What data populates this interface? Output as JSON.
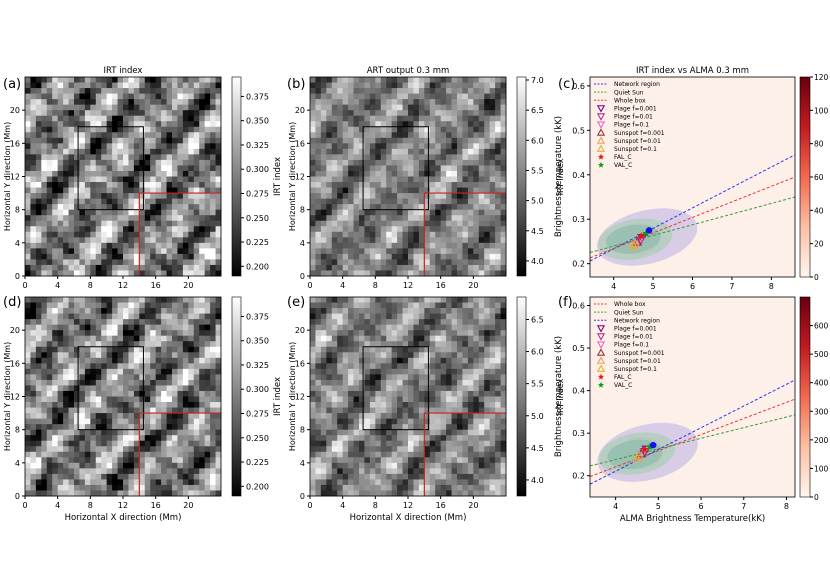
{
  "panel_labels": [
    "(a)",
    "(b)",
    "(c)",
    "(d)",
    "(e)",
    "(f)"
  ],
  "map_panels": [
    {
      "id": "a",
      "title": "IRT index",
      "xlabel": "",
      "ylabel": "Horizontal Y direction (Mm)",
      "xticks": [
        "0",
        "4",
        "8",
        "12",
        "16",
        "20"
      ],
      "yticks": [
        "0",
        "4",
        "8",
        "12",
        "16",
        "20"
      ],
      "cbar_label": "IRT index",
      "cbar_ticks": [
        "0.200",
        "0.225",
        "0.250",
        "0.275",
        "0.300",
        "0.325",
        "0.350",
        "0.375"
      ],
      "cbar_range": [
        0.19,
        0.395
      ],
      "contrast": 1.7
    },
    {
      "id": "b",
      "title": "ART output 0.3 mm",
      "xlabel": "",
      "ylabel": "Horizontal Y direction (Mm)",
      "xticks": [
        "0",
        "4",
        "8",
        "12",
        "16",
        "20"
      ],
      "yticks": [
        "0",
        "4",
        "8",
        "12",
        "16",
        "20"
      ],
      "cbar_label": "Brightness temperature (kK)",
      "cbar_ticks": [
        "4.0",
        "4.5",
        "5.0",
        "5.5",
        "6.0",
        "6.5",
        "7.0"
      ],
      "cbar_range": [
        3.75,
        7.05
      ],
      "contrast": 1.2
    },
    {
      "id": "d",
      "title": "",
      "xlabel": "Horizontal X direction (Mm)",
      "ylabel": "Horizontal Y direction (Mm)",
      "xticks": [
        "0",
        "4",
        "8",
        "12",
        "16",
        "20"
      ],
      "yticks": [
        "0",
        "4",
        "8",
        "12",
        "16",
        "20"
      ],
      "cbar_label": "IRT index",
      "cbar_ticks": [
        "0.200",
        "0.225",
        "0.250",
        "0.275",
        "0.300",
        "0.325",
        "0.350",
        "0.375"
      ],
      "cbar_range": [
        0.19,
        0.395
      ],
      "contrast": 1.7
    },
    {
      "id": "e",
      "title": "",
      "xlabel": "Horizontal X direction (Mm)",
      "ylabel": "Horizontal Y direction (Mm)",
      "xticks": [
        "0",
        "4",
        "8",
        "12",
        "16",
        "20"
      ],
      "yticks": [
        "0",
        "4",
        "8",
        "12",
        "16",
        "20"
      ],
      "cbar_label": "Brightness temperature (kK)",
      "cbar_ticks": [
        "4.0",
        "4.5",
        "5.0",
        "5.5",
        "6.0",
        "6.5"
      ],
      "cbar_range": [
        3.75,
        6.85
      ],
      "contrast": 1.2
    }
  ],
  "chart_data": [
    {
      "type": "heatmap",
      "panel": "a",
      "title": "IRT index",
      "ylabel": "Horizontal Y direction (Mm)",
      "xlim": [
        0,
        24
      ],
      "ylim": [
        0,
        24
      ],
      "regions": [
        {
          "kind": "network-box",
          "color": "#000000",
          "x": [
            6.5,
            14.5
          ],
          "y": [
            8,
            18
          ]
        },
        {
          "kind": "sunspot-box",
          "color": "#cc2222",
          "x": [
            14,
            24
          ],
          "y": [
            0,
            10
          ]
        }
      ],
      "colorbar": {
        "label": "IRT index",
        "min": 0.19,
        "max": 0.395
      }
    },
    {
      "type": "heatmap",
      "panel": "b",
      "title": "ART output 0.3 mm",
      "ylabel": "Horizontal Y direction (Mm)",
      "xlim": [
        0,
        24
      ],
      "ylim": [
        0,
        24
      ],
      "regions": [
        {
          "kind": "network-box",
          "color": "#000000",
          "x": [
            6.5,
            14.5
          ],
          "y": [
            8,
            18
          ]
        },
        {
          "kind": "sunspot-box",
          "color": "#cc2222",
          "x": [
            14,
            24
          ],
          "y": [
            0,
            10
          ]
        }
      ],
      "colorbar": {
        "label": "Brightness temperature (kK)",
        "min": 3.75,
        "max": 7.05
      }
    },
    {
      "type": "scatter",
      "panel": "c",
      "title": "IRT index vs ALMA 0.3 mm",
      "xlabel": "",
      "ylabel": "IRT index",
      "xlim": [
        3.4,
        8.6
      ],
      "ylim": [
        0.17,
        0.62
      ],
      "xticks": [
        "4",
        "5",
        "6",
        "7",
        "8"
      ],
      "yticks": [
        "0.2",
        "0.3",
        "0.4",
        "0.5",
        "0.6"
      ],
      "colorbar": {
        "min": 0,
        "max": 120,
        "ticks": [
          "0",
          "20",
          "40",
          "60",
          "80",
          "100",
          "120"
        ]
      },
      "legend_position": "top-left",
      "lines": [
        {
          "name": "Network region",
          "color": "#3333ee",
          "x": [
            3.4,
            8.6
          ],
          "y": [
            0.206,
            0.445
          ]
        },
        {
          "name": "Quiet Sun",
          "color": "#3a9a3a",
          "x": [
            3.4,
            8.6
          ],
          "y": [
            0.225,
            0.35
          ]
        },
        {
          "name": "Whole box",
          "color": "#ee3333",
          "x": [
            3.4,
            8.6
          ],
          "y": [
            0.213,
            0.395
          ]
        }
      ],
      "markers": [
        {
          "name": "Plage f=0.001",
          "shape": "triangle-down",
          "color": "#800080",
          "x": 4.72,
          "y": 0.258
        },
        {
          "name": "Plage f=0.01",
          "shape": "triangle-down",
          "color": "#b03090",
          "x": 4.68,
          "y": 0.252
        },
        {
          "name": "Plage f=0.1",
          "shape": "triangle-down",
          "color": "#ee66cc",
          "x": 4.62,
          "y": 0.246
        },
        {
          "name": "Sunspot f=0.001",
          "shape": "triangle-up",
          "color": "#993333",
          "x": 4.6,
          "y": 0.249
        },
        {
          "name": "Sunspot f=0.01",
          "shape": "triangle-up",
          "color": "#e8a060",
          "x": 4.55,
          "y": 0.244
        },
        {
          "name": "Sunspot f=0.1",
          "shape": "triangle-up",
          "color": "#e8b030",
          "x": 4.5,
          "y": 0.24
        },
        {
          "name": "FAL_C",
          "shape": "star",
          "color": "#ee1111",
          "x": 4.7,
          "y": 0.262
        },
        {
          "name": "VAL_C",
          "shape": "star",
          "color": "#119911",
          "x": 4.82,
          "y": 0.268
        },
        {
          "name": "",
          "shape": "circle",
          "color": "#1111ee",
          "x": 4.9,
          "y": 0.275
        }
      ],
      "contours": [
        {
          "color": "#b9aee6",
          "cx": 4.85,
          "cy": 0.26,
          "rx": 1.3,
          "ry": 0.06,
          "rot": -14
        },
        {
          "color": "#9fd0a8",
          "cx": 4.55,
          "cy": 0.255,
          "rx": 0.95,
          "ry": 0.045,
          "rot": -10
        },
        {
          "color": "#7fb8a8",
          "cx": 4.5,
          "cy": 0.255,
          "rx": 0.7,
          "ry": 0.032,
          "rot": -8
        }
      ]
    },
    {
      "type": "heatmap",
      "panel": "d",
      "xlabel": "Horizontal X direction (Mm)",
      "ylabel": "Horizontal Y direction (Mm)",
      "xlim": [
        0,
        24
      ],
      "ylim": [
        0,
        24
      ],
      "regions": [
        {
          "kind": "network-box",
          "color": "#000000",
          "x": [
            6.5,
            14.5
          ],
          "y": [
            8,
            18
          ]
        },
        {
          "kind": "sunspot-box",
          "color": "#cc2222",
          "x": [
            14,
            24
          ],
          "y": [
            0,
            10
          ]
        }
      ],
      "colorbar": {
        "label": "IRT index",
        "min": 0.19,
        "max": 0.395
      }
    },
    {
      "type": "heatmap",
      "panel": "e",
      "xlabel": "Horizontal X direction (Mm)",
      "ylabel": "Horizontal Y direction (Mm)",
      "xlim": [
        0,
        24
      ],
      "ylim": [
        0,
        24
      ],
      "regions": [
        {
          "kind": "network-box",
          "color": "#000000",
          "x": [
            6.5,
            14.5
          ],
          "y": [
            8,
            18
          ]
        },
        {
          "kind": "sunspot-box",
          "color": "#cc2222",
          "x": [
            14,
            24
          ],
          "y": [
            0,
            10
          ]
        }
      ],
      "colorbar": {
        "label": "Brightness temperature (kK)",
        "min": 3.75,
        "max": 6.85
      }
    },
    {
      "type": "scatter",
      "panel": "f",
      "title": "",
      "xlabel": "ALMA Brightness Temperature(kK)",
      "ylabel": "IRT index",
      "xlim": [
        3.4,
        8.2
      ],
      "ylim": [
        0.15,
        0.62
      ],
      "xticks": [
        "4",
        "5",
        "6",
        "7",
        "8"
      ],
      "yticks": [
        "0.2",
        "0.3",
        "0.4",
        "0.5",
        "0.6"
      ],
      "colorbar": {
        "min": 0,
        "max": 700,
        "ticks": [
          "0",
          "100",
          "200",
          "300",
          "400",
          "500",
          "600"
        ]
      },
      "legend_position": "top-left",
      "lines": [
        {
          "name": "Whole box",
          "color": "#ee3333",
          "x": [
            3.4,
            8.2
          ],
          "y": [
            0.198,
            0.38
          ]
        },
        {
          "name": "Quiet Sun",
          "color": "#3a9a3a",
          "x": [
            3.4,
            8.2
          ],
          "y": [
            0.223,
            0.343
          ]
        },
        {
          "name": "Network region",
          "color": "#3333ee",
          "x": [
            3.4,
            8.2
          ],
          "y": [
            0.18,
            0.425
          ]
        }
      ],
      "markers": [
        {
          "name": "Plage f=0.001",
          "shape": "triangle-down",
          "color": "#800080",
          "x": 4.72,
          "y": 0.262
        },
        {
          "name": "Plage f=0.01",
          "shape": "triangle-down",
          "color": "#b03090",
          "x": 4.68,
          "y": 0.256
        },
        {
          "name": "Plage f=0.1",
          "shape": "triangle-down",
          "color": "#ee66cc",
          "x": 4.62,
          "y": 0.25
        },
        {
          "name": "Sunspot f=0.001",
          "shape": "triangle-up",
          "color": "#993333",
          "x": 4.6,
          "y": 0.252
        },
        {
          "name": "Sunspot f=0.01",
          "shape": "triangle-up",
          "color": "#e8a060",
          "x": 4.55,
          "y": 0.247
        },
        {
          "name": "Sunspot f=0.1",
          "shape": "triangle-up",
          "color": "#e8b030",
          "x": 4.5,
          "y": 0.242
        },
        {
          "name": "FAL_C",
          "shape": "star",
          "color": "#ee1111",
          "x": 4.68,
          "y": 0.262
        },
        {
          "name": "VAL_C",
          "shape": "star",
          "color": "#119911",
          "x": 4.8,
          "y": 0.268
        },
        {
          "name": "",
          "shape": "circle",
          "color": "#1111ee",
          "x": 4.88,
          "y": 0.272
        }
      ],
      "contours": [
        {
          "color": "#b9aee6",
          "cx": 4.75,
          "cy": 0.255,
          "rx": 1.2,
          "ry": 0.065,
          "rot": -14
        },
        {
          "color": "#9fd0a8",
          "cx": 4.5,
          "cy": 0.252,
          "rx": 0.9,
          "ry": 0.048,
          "rot": -10
        },
        {
          "color": "#7fb8a8",
          "cx": 4.45,
          "cy": 0.25,
          "rx": 0.65,
          "ry": 0.034,
          "rot": -8
        }
      ]
    }
  ]
}
